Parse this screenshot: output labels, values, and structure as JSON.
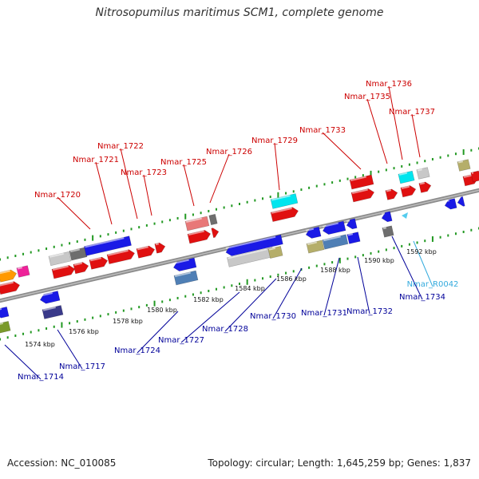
{
  "title": "Nitrosopumilus maritimus SCM1, complete genome",
  "footer": {
    "accession": "Accession: NC_010085",
    "stats": "Topology: circular; Length: 1,645,259 bp; Genes: 1,837"
  },
  "colors": {
    "forward_label": "#cc0000",
    "reverse_label": "#000099",
    "rna_label": "#33aadd",
    "backbone": "#999999",
    "tick_mark": "#229922"
  },
  "scale_labels": [
    "1574 kbp",
    "1576 kbp",
    "1578 kbp",
    "1580 kbp",
    "1582 kbp",
    "1584 kbp",
    "1586 kbp",
    "1588 kbp",
    "1590 kbp",
    "1592 kbp"
  ],
  "labels_top": [
    "Nmar_1720",
    "Nmar_1721",
    "Nmar_1722",
    "Nmar_1723",
    "Nmar_1725",
    "Nmar_1726",
    "Nmar_1729",
    "Nmar_1733",
    "Nmar_1735",
    "Nmar_1736",
    "Nmar_1737"
  ],
  "labels_bottom": [
    "Nmar_1714",
    "Nmar_1717",
    "Nmar_1724",
    "Nmar_1727",
    "Nmar_1728",
    "Nmar_1730",
    "Nmar_1731",
    "Nmar_1732",
    "Nmar_1734"
  ],
  "labels_rna": [
    "Nmar_R0042"
  ],
  "feature_colors": {
    "red": "#e01010",
    "pink": "#e87878",
    "blue": "#1a1ae6",
    "navy": "#3a3a8a",
    "steel": "#4f7fb5",
    "cyan": "#00e5ee",
    "light_gray": "#c8c8c8",
    "dark_gray": "#6e6e6e",
    "olive": "#b5ae6a",
    "orange": "#ff9900",
    "magenta": "#ee2299",
    "green_olive": "#7a9a2a"
  }
}
